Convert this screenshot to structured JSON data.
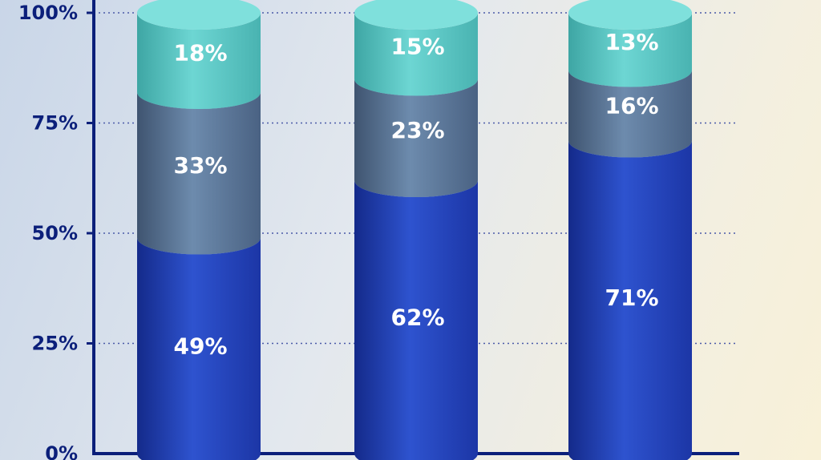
{
  "chart_data": {
    "type": "bar",
    "stacked": true,
    "style": "3d-cylinder",
    "categories": [
      "",
      "",
      ""
    ],
    "ylim": [
      0,
      100
    ],
    "y_ticks": [
      "0%",
      "25%",
      "50%",
      "75%",
      "100%"
    ],
    "grid": true,
    "series": [
      {
        "values": [
          49,
          62,
          71
        ],
        "labels": [
          "49%",
          "62%",
          "71%"
        ],
        "color": "#2a4fc8"
      },
      {
        "values": [
          33,
          23,
          16
        ],
        "labels": [
          "33%",
          "23%",
          "16%"
        ],
        "color": "#5d7a9c"
      },
      {
        "values": [
          18,
          15,
          13
        ],
        "labels": [
          "18%",
          "15%",
          "13%"
        ],
        "color": "#5cc6c3"
      }
    ]
  }
}
